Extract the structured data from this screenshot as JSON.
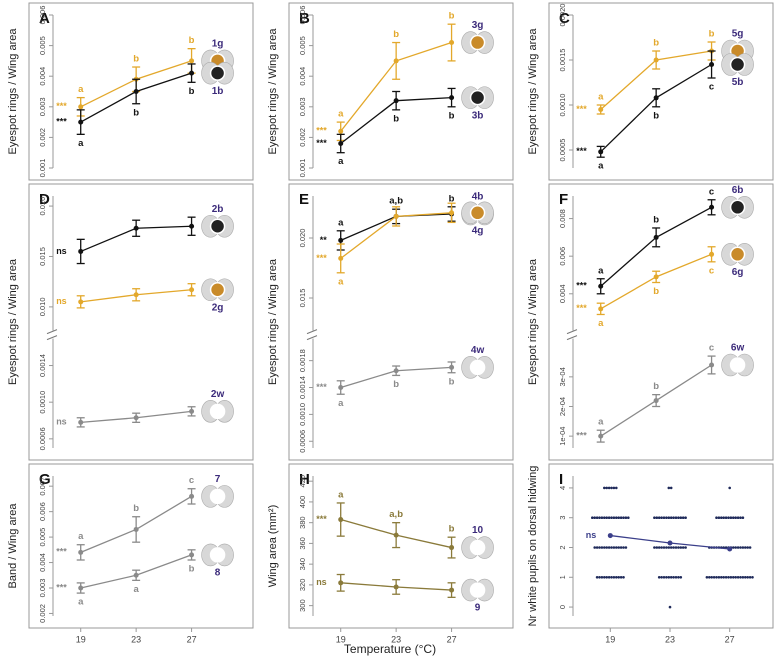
{
  "figure": {
    "xlabel": "Temperature (°C)",
    "legend_color": "#3b2a7a"
  },
  "chart_data": [
    {
      "type": "line",
      "title": "A",
      "ylabel": "Eyespot rings / Wing area",
      "x": [
        19,
        23,
        27
      ],
      "xlim": [
        17,
        31
      ],
      "ylim": [
        0.001,
        0.006
      ],
      "yticks": [
        0.001,
        0.002,
        0.003,
        0.004,
        0.005,
        0.006
      ],
      "series": [
        {
          "name": "1g",
          "color": "#e3a82b",
          "values": [
            0.003,
            0.0039,
            0.0045
          ],
          "errors": [
            0.0003,
            0.0004,
            0.0004
          ],
          "letters": [
            "a",
            "b",
            "b"
          ],
          "sig": "***"
        },
        {
          "name": "1b",
          "color": "#111111",
          "values": [
            0.0025,
            0.0035,
            0.0041
          ],
          "errors": [
            0.0004,
            0.0004,
            0.0003
          ],
          "letters": [
            "a",
            "b",
            "b"
          ],
          "sig": "***"
        }
      ]
    },
    {
      "type": "line",
      "title": "B",
      "ylabel": "Eyespot rings / Wing area",
      "x": [
        19,
        23,
        27
      ],
      "xlim": [
        17,
        31
      ],
      "ylim": [
        0.001,
        0.006
      ],
      "yticks": [
        0.001,
        0.002,
        0.003,
        0.004,
        0.005,
        0.006
      ],
      "series": [
        {
          "name": "3g",
          "color": "#e3a82b",
          "values": [
            0.0022,
            0.0045,
            0.0051
          ],
          "errors": [
            0.0003,
            0.0006,
            0.0006
          ],
          "letters": [
            "a",
            "b",
            "b"
          ],
          "sig": "***"
        },
        {
          "name": "3b",
          "color": "#111111",
          "values": [
            0.0018,
            0.0032,
            0.0033
          ],
          "errors": [
            0.0003,
            0.0003,
            0.0003
          ],
          "letters": [
            "a",
            "b",
            "b"
          ],
          "sig": "***"
        }
      ]
    },
    {
      "type": "line",
      "title": "C",
      "ylabel": "Eyespot rings / Wing area",
      "x": [
        19,
        23,
        27
      ],
      "xlim": [
        17,
        31
      ],
      "ylim": [
        0.0003,
        0.002
      ],
      "yticks": [
        {
          "value": 0.0005,
          "label": "0.0005"
        },
        {
          "value": 0.001,
          "label": "0.0010"
        },
        {
          "value": 0.0015,
          "label": "0.0015"
        },
        {
          "value": 0.002,
          "label": "0.0020"
        }
      ],
      "series": [
        {
          "name": "5g",
          "color": "#e3a82b",
          "values": [
            0.00095,
            0.0015,
            0.0016
          ],
          "errors": [
            5e-05,
            0.0001,
            0.0001
          ],
          "letters": [
            "a",
            "b",
            "b"
          ],
          "sig": "***"
        },
        {
          "name": "5b",
          "color": "#111111",
          "values": [
            0.00048,
            0.00108,
            0.00145
          ],
          "errors": [
            6e-05,
            0.0001,
            0.00015
          ],
          "letters": [
            "a",
            "b",
            "c"
          ],
          "sig": "***"
        }
      ]
    },
    {
      "type": "line",
      "title": "D",
      "ylabel": "Eyespot rings / Wing area",
      "x": [
        19,
        23,
        27
      ],
      "xlim": [
        17,
        31
      ],
      "axes": [
        {
          "ylim": [
            0.0085,
            0.021
          ],
          "yticks": [
            {
              "value": 0.01,
              "label": "0.010"
            },
            0.015,
            {
              "value": 0.02,
              "label": "0.020"
            }
          ]
        },
        {
          "ylim": [
            0.0005,
            0.0016
          ],
          "yticks": [
            0.0006,
            {
              "value": 0.001,
              "label": "0.0010"
            },
            0.0014
          ]
        }
      ],
      "series": [
        {
          "name": "2b",
          "color": "#111111",
          "axis": 0,
          "values": [
            0.0155,
            0.0178,
            0.018
          ],
          "errors": [
            0.0012,
            0.0008,
            0.0009
          ],
          "sig": "ns"
        },
        {
          "name": "2g",
          "color": "#e3a82b",
          "axis": 0,
          "values": [
            0.0105,
            0.0112,
            0.0117
          ],
          "errors": [
            0.0006,
            0.0006,
            0.0006
          ],
          "sig": "ns"
        },
        {
          "name": "2w",
          "color": "#8a8a8a",
          "axis": 1,
          "values": [
            0.00078,
            0.00083,
            0.0009
          ],
          "errors": [
            5e-05,
            5e-05,
            5e-05
          ],
          "sig": "ns"
        }
      ]
    },
    {
      "type": "line",
      "title": "E",
      "ylabel": "Eyespot rings / Wing area",
      "x": [
        19,
        23,
        27
      ],
      "xlim": [
        17,
        31
      ],
      "axes": [
        {
          "ylim": [
            0.013,
            0.0235
          ],
          "yticks": [
            0.015,
            {
              "value": 0.02,
              "label": "0.020"
            }
          ]
        },
        {
          "ylim": [
            0.0005,
            0.002
          ],
          "yticks": [
            0.0006,
            {
              "value": 0.001,
              "label": "0.0010"
            },
            0.0014,
            0.0018
          ]
        }
      ],
      "series": [
        {
          "name": "4b",
          "color": "#111111",
          "axis": 0,
          "values": [
            0.0198,
            0.0218,
            0.022
          ],
          "errors": [
            0.0008,
            0.0006,
            0.0006
          ],
          "letters": [
            "a",
            "a,b",
            "b"
          ],
          "sig": "**"
        },
        {
          "name": "4g",
          "color": "#e3a82b",
          "axis": 0,
          "values": [
            0.0183,
            0.0218,
            0.0221
          ],
          "errors": [
            0.0012,
            0.0008,
            0.0008
          ],
          "letters": [
            "a",
            null,
            null
          ],
          "sig": "***"
        },
        {
          "name": "4w",
          "color": "#8a8a8a",
          "axis": 1,
          "values": [
            0.0014,
            0.00165,
            0.0017
          ],
          "errors": [
            0.0001,
            7e-05,
            8e-05
          ],
          "letters": [
            "a",
            "b",
            "b"
          ],
          "sig": "***"
        }
      ]
    },
    {
      "type": "line",
      "title": "F",
      "ylabel": "Eyespot rings / Wing area",
      "x": [
        19,
        23,
        27
      ],
      "xlim": [
        17,
        31
      ],
      "axes": [
        {
          "ylim": [
            0.0025,
            0.0092
          ],
          "yticks": [
            0.004,
            0.006,
            0.008
          ]
        },
        {
          "ylim": [
            6e-05,
            0.0004
          ],
          "yticks": [
            {
              "value": 0.0001,
              "label": "1e-04"
            },
            {
              "value": 0.0002,
              "label": "2e-04"
            },
            {
              "value": 0.0003,
              "label": "3e-04"
            }
          ]
        }
      ],
      "series": [
        {
          "name": "6b",
          "color": "#111111",
          "axis": 0,
          "values": [
            0.0044,
            0.007,
            0.0086
          ],
          "errors": [
            0.0004,
            0.0005,
            0.0004
          ],
          "letters": [
            "a",
            "b",
            "c"
          ],
          "sig": "***"
        },
        {
          "name": "6g",
          "color": "#e3a82b",
          "axis": 0,
          "values": [
            0.0032,
            0.0049,
            0.0061
          ],
          "errors": [
            0.0003,
            0.0003,
            0.0004
          ],
          "letters": [
            "a",
            "b",
            "c"
          ],
          "sig": "***"
        },
        {
          "name": "6w",
          "color": "#8a8a8a",
          "axis": 1,
          "values": [
            0.0001,
            0.00022,
            0.00034
          ],
          "errors": [
            2e-05,
            2e-05,
            3e-05
          ],
          "letters": [
            "a",
            "b",
            "c"
          ],
          "sig": "***"
        }
      ]
    },
    {
      "type": "line",
      "title": "G",
      "ylabel": "Band / Wing area",
      "x": [
        19,
        23,
        27
      ],
      "xlim": [
        17,
        31
      ],
      "xticks": [
        19,
        23,
        27
      ],
      "ylim": [
        0.0019,
        0.0074
      ],
      "yticks": [
        0.002,
        0.003,
        0.004,
        0.005,
        0.006,
        0.007
      ],
      "series": [
        {
          "name": "7",
          "color": "#8a8a8a",
          "values": [
            0.0044,
            0.0053,
            0.0066
          ],
          "errors": [
            0.0003,
            0.0005,
            0.0003
          ],
          "letters": [
            "a",
            "b",
            "c"
          ],
          "sig": "***"
        },
        {
          "name": "8",
          "color": "#8a8a8a",
          "values": [
            0.003,
            0.0035,
            0.0043
          ],
          "errors": [
            0.0002,
            0.0002,
            0.0002
          ],
          "letters": [
            "a",
            "a",
            "b"
          ],
          "sig": "***"
        }
      ]
    },
    {
      "type": "line",
      "title": "H",
      "ylabel": "Wing area (mm²)",
      "x": [
        19,
        23,
        27
      ],
      "xlim": [
        17,
        31
      ],
      "xticks": [
        19,
        23,
        27
      ],
      "ylim": [
        290,
        425
      ],
      "yticks": [
        300,
        320,
        340,
        360,
        380,
        400,
        420
      ],
      "series": [
        {
          "name": "10",
          "color": "#8a7a3a",
          "values": [
            383,
            368,
            356
          ],
          "errors": [
            16,
            12,
            10
          ],
          "letters": [
            "a",
            "a,b",
            "b"
          ],
          "sig": "***"
        },
        {
          "name": "9",
          "color": "#8a7a3a",
          "values": [
            322,
            318,
            315
          ],
          "errors": [
            8,
            7,
            7
          ],
          "sig": "ns"
        }
      ]
    },
    {
      "type": "strip",
      "title": "I",
      "ylabel": "Nr white pupils on dorsal hidwing",
      "x": [
        19,
        23,
        27
      ],
      "xlim": [
        16.5,
        29.5
      ],
      "xticks": [
        19,
        23,
        27
      ],
      "ylim": [
        -0.3,
        4.4
      ],
      "yticks": [
        0,
        1,
        2,
        3,
        4
      ],
      "counts": [
        [
          0,
          12,
          14,
          16,
          6
        ],
        [
          1,
          10,
          14,
          14,
          2
        ],
        [
          0,
          20,
          18,
          12,
          1
        ]
      ],
      "dot_color": "#1f2a5a",
      "series": [
        {
          "color": "#3b3f8a",
          "values": [
            2.4,
            2.15,
            1.95
          ],
          "sig": "ns"
        }
      ]
    }
  ]
}
